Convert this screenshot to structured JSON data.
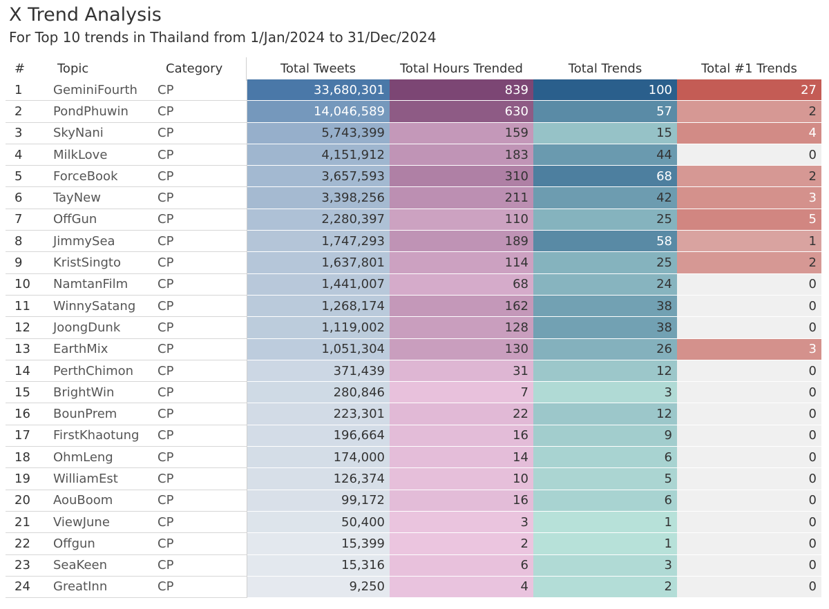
{
  "header": {
    "title": "X Trend Analysis",
    "subtitle": "For Top 10 trends in Thailand from 1/Jan/2024 to 31/Dec/2024"
  },
  "chart_data": {
    "type": "table",
    "title": "X Trend Analysis",
    "subtitle": "For Top 10 trends in Thailand from 1/Jan/2024 to 31/Dec/2024",
    "columns": [
      "#",
      "Topic",
      "Category",
      "Total Tweets",
      "Total Hours Trended",
      "Total Trends",
      "Total #1 Trends"
    ],
    "rows": [
      [
        "1",
        "GeminiFourth",
        "CP",
        "33,680,301",
        "839",
        "100",
        "27"
      ],
      [
        "2",
        "PondPhuwin",
        "CP",
        "14,046,589",
        "630",
        "57",
        "2"
      ],
      [
        "3",
        "SkyNani",
        "CP",
        "5,743,399",
        "159",
        "15",
        "4"
      ],
      [
        "4",
        "MilkLove",
        "CP",
        "4,151,912",
        "183",
        "44",
        "0"
      ],
      [
        "5",
        "ForceBook",
        "CP",
        "3,657,593",
        "310",
        "68",
        "2"
      ],
      [
        "6",
        "TayNew",
        "CP",
        "3,398,256",
        "211",
        "42",
        "3"
      ],
      [
        "7",
        "OffGun",
        "CP",
        "2,280,397",
        "110",
        "25",
        "5"
      ],
      [
        "8",
        "JimmySea",
        "CP",
        "1,747,293",
        "189",
        "58",
        "1"
      ],
      [
        "9",
        "KristSingto",
        "CP",
        "1,637,801",
        "114",
        "25",
        "2"
      ],
      [
        "10",
        "NamtanFilm",
        "CP",
        "1,441,007",
        "68",
        "24",
        "0"
      ],
      [
        "11",
        "WinnySatang",
        "CP",
        "1,268,174",
        "162",
        "38",
        "0"
      ],
      [
        "12",
        "JoongDunk",
        "CP",
        "1,119,002",
        "128",
        "38",
        "0"
      ],
      [
        "13",
        "EarthMix",
        "CP",
        "1,051,304",
        "130",
        "26",
        "3"
      ],
      [
        "14",
        "PerthChimon",
        "CP",
        "371,439",
        "31",
        "12",
        "0"
      ],
      [
        "15",
        "BrightWin",
        "CP",
        "280,846",
        "7",
        "3",
        "0"
      ],
      [
        "16",
        "BounPrem",
        "CP",
        "223,301",
        "22",
        "12",
        "0"
      ],
      [
        "17",
        "FirstKhaotung",
        "CP",
        "196,664",
        "16",
        "9",
        "0"
      ],
      [
        "18",
        "OhmLeng",
        "CP",
        "174,000",
        "14",
        "6",
        "0"
      ],
      [
        "19",
        "WilliamEst",
        "CP",
        "126,374",
        "10",
        "5",
        "0"
      ],
      [
        "20",
        "AouBoom",
        "CP",
        "99,172",
        "16",
        "6",
        "0"
      ],
      [
        "21",
        "ViewJune",
        "CP",
        "50,400",
        "3",
        "1",
        "0"
      ],
      [
        "22",
        "Offgun",
        "CP",
        "15,399",
        "2",
        "1",
        "0"
      ],
      [
        "23",
        "SeaKeen",
        "CP",
        "15,316",
        "6",
        "3",
        "0"
      ],
      [
        "24",
        "GreatInn",
        "CP",
        "9,250",
        "4",
        "2",
        "0"
      ]
    ],
    "color_scales": {
      "Total Tweets": [
        "#eef0f3",
        "#4a78a8"
      ],
      "Total Hours Trended": [
        "#eec8e2",
        "#7c4674"
      ],
      "Total Trends": [
        "#bde6dc",
        "#2a5f8c"
      ],
      "Total #1 Trends": [
        "#f0f0f0",
        "#c45c55"
      ]
    }
  }
}
